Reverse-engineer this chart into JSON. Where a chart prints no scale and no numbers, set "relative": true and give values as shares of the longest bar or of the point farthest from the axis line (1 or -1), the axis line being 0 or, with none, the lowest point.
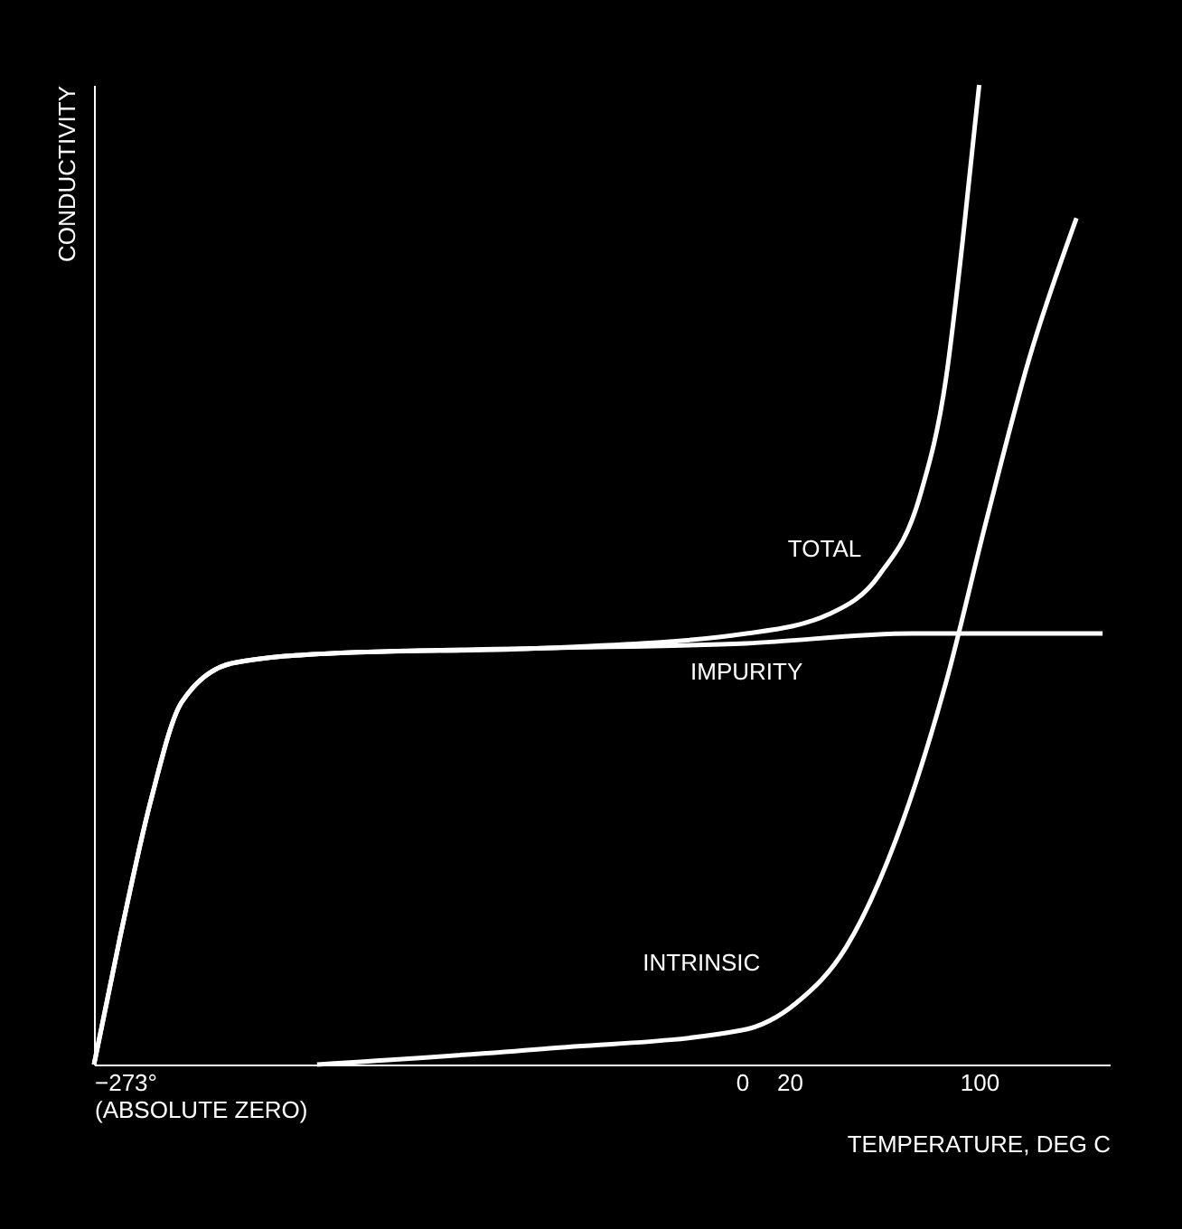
{
  "chart_data": {
    "type": "line",
    "relative": true,
    "xlabel": "TEMPERATURE, DEG C",
    "ylabel": "CONDUCTIVITY",
    "xlim": [
      -273,
      155
    ],
    "xticks": [
      {
        "value": -273,
        "label": "−273°\n(ABSOLUTE ZERO)"
      },
      0,
      20,
      100
    ],
    "tick_labels": "x",
    "grid": false,
    "series": [
      {
        "name": "TOTAL",
        "color": "#ffffff",
        "x": [
          -273,
          -262,
          -249,
          -236,
          -214,
          -171,
          -84,
          2,
          37,
          58,
          75,
          86,
          93,
          100
        ],
        "values": [
          0,
          0.13,
          0.27,
          0.37,
          0.41,
          0.42,
          0.425,
          0.44,
          0.46,
          0.5,
          0.58,
          0.7,
          0.84,
          1.0
        ]
      },
      {
        "name": "IMPURITY",
        "color": "#ffffff",
        "x": [
          -273,
          -262,
          -249,
          -236,
          -214,
          -171,
          -84,
          2,
          72,
          152
        ],
        "values": [
          0,
          0.13,
          0.27,
          0.37,
          0.41,
          0.42,
          0.425,
          0.43,
          0.44,
          0.44
        ]
      },
      {
        "name": "INTRINSIC",
        "color": "#ffffff",
        "x": [
          -179,
          -84,
          0,
          23,
          44,
          65,
          86,
          103,
          121,
          141
        ],
        "values": [
          0,
          0.016,
          0.035,
          0.063,
          0.12,
          0.23,
          0.39,
          0.555,
          0.72,
          0.864
        ]
      }
    ]
  }
}
